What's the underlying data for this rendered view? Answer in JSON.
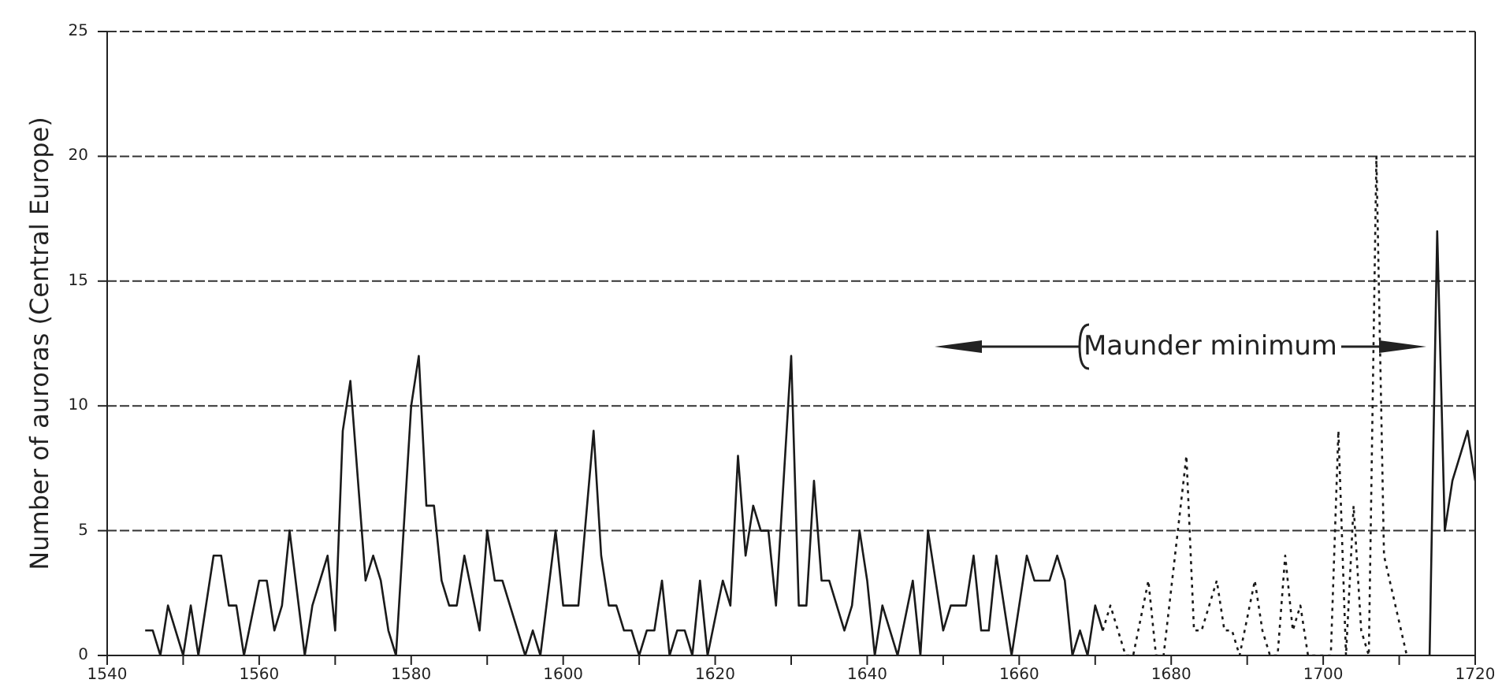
{
  "chart_data": {
    "type": "line",
    "ylabel": "Number of auroras (Central Europe)",
    "xlim": [
      1540,
      1720
    ],
    "xticks": [
      1540,
      {
        "value": 1550,
        "label": null
      },
      1560,
      {
        "value": 1570,
        "label": null
      },
      1580,
      {
        "value": 1590,
        "label": null
      },
      1600,
      {
        "value": 1610,
        "label": null
      },
      1620,
      {
        "value": 1630,
        "label": null
      },
      1640,
      {
        "value": 1650,
        "label": null
      },
      1660,
      {
        "value": 1670,
        "label": null
      },
      1680,
      {
        "value": 1690,
        "label": null
      },
      1700,
      {
        "value": 1710,
        "label": null
      },
      1720
    ],
    "ylim": [
      0,
      25
    ],
    "yticks": [
      0,
      5,
      10,
      15,
      20,
      25
    ],
    "grid": "y",
    "legend": false,
    "marker": "none",
    "annotations": [
      "Maunder minimum"
    ],
    "series": [
      {
        "color": "#1a1a1a",
        "line_style": "solid",
        "x": [
          1545,
          1546,
          1547,
          1548,
          1550,
          1551,
          1552,
          1554,
          1555,
          1556,
          1557,
          1558,
          1560,
          1561,
          1562,
          1563,
          1564,
          1566,
          1567,
          1569,
          1570,
          1571,
          1572,
          1574,
          1575,
          1576,
          1577,
          1578,
          1580,
          1581,
          1582,
          1583,
          1584,
          1585,
          1586,
          1587,
          1589,
          1590,
          1591,
          1592,
          1595,
          1596,
          1597,
          1599,
          1600,
          1602,
          1604,
          1605,
          1606,
          1607,
          1608,
          1609,
          1610,
          1611,
          1612,
          1613,
          1614,
          1615,
          1616,
          1617,
          1618,
          1619,
          1621,
          1622,
          1623,
          1624,
          1625,
          1626,
          1627,
          1628,
          1630,
          1631,
          1632,
          1633,
          1634,
          1635,
          1637,
          1638,
          1639,
          1640,
          1641,
          1642,
          1644,
          1646,
          1647,
          1648,
          1650,
          1651,
          1653,
          1654,
          1655,
          1656,
          1657,
          1659,
          1661,
          1662,
          1664,
          1665,
          1666,
          1667,
          1668,
          1669,
          1670,
          1671
        ],
        "values": [
          1,
          1,
          0,
          2,
          0,
          2,
          0,
          4,
          4,
          2,
          2,
          0,
          3,
          3,
          1,
          2,
          5,
          0,
          2,
          4,
          1,
          9,
          11,
          3,
          4,
          3,
          1,
          0,
          10,
          12,
          6,
          6,
          3,
          2,
          2,
          4,
          1,
          5,
          3,
          3,
          0,
          1,
          0,
          5,
          2,
          2,
          9,
          4,
          2,
          2,
          1,
          1,
          0,
          1,
          1,
          3,
          0,
          1,
          1,
          0,
          3,
          0,
          3,
          2,
          8,
          4,
          6,
          5,
          5,
          2,
          12,
          2,
          2,
          7,
          3,
          3,
          1,
          2,
          5,
          3,
          0,
          2,
          0,
          3,
          0,
          5,
          1,
          2,
          2,
          4,
          1,
          1,
          4,
          0,
          4,
          3,
          3,
          4,
          3,
          0,
          1,
          0,
          2,
          1
        ]
      },
      {
        "color": "#1a1a1a",
        "line_style": "dotted",
        "x": [
          1671,
          1672,
          1674,
          1675,
          1677,
          1678,
          1679,
          1682,
          1683,
          1684,
          1686,
          1687,
          1688,
          1689,
          1691,
          1692,
          1693,
          1694,
          1695,
          1696,
          1697,
          1698,
          1701,
          1702,
          1703,
          1704,
          1705,
          1706,
          1707,
          1708,
          1711
        ],
        "values": [
          1,
          2,
          0,
          0,
          3,
          0,
          0,
          8,
          1,
          1,
          3,
          1,
          1,
          0,
          3,
          1,
          0,
          0,
          4,
          1,
          2,
          0,
          0,
          9,
          0,
          6,
          1,
          0,
          20,
          4,
          0
        ]
      },
      {
        "color": "#1a1a1a",
        "line_style": "solid",
        "x": [
          1714,
          1715,
          1716,
          1717,
          1719,
          1720
        ],
        "values": [
          0,
          17,
          5,
          7,
          9,
          7
        ]
      }
    ]
  }
}
